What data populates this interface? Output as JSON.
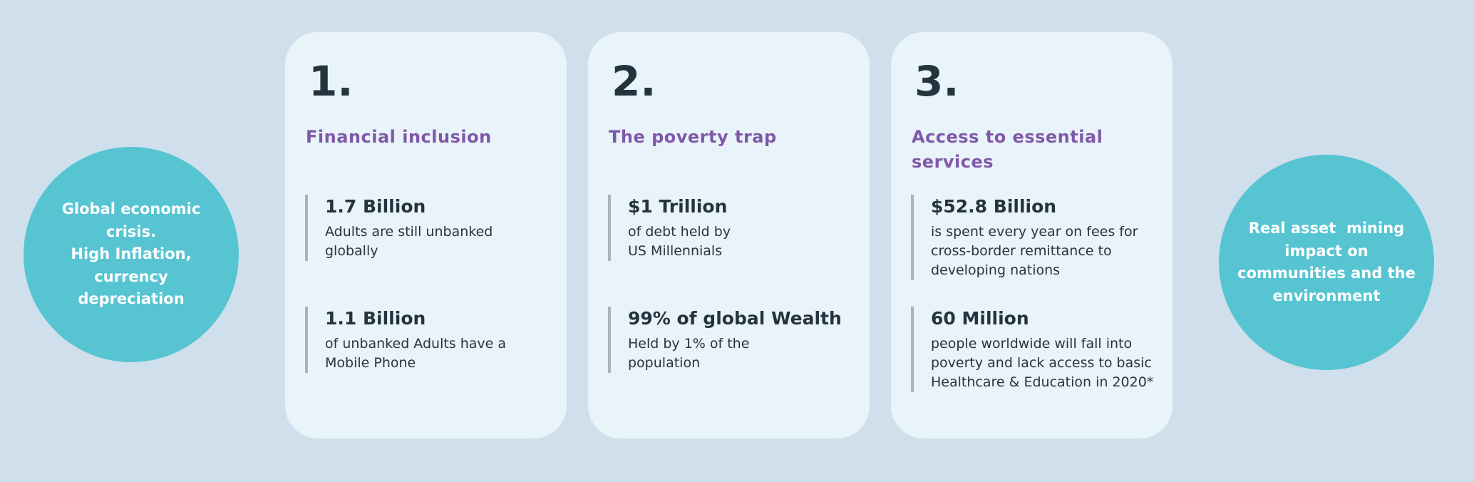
{
  "palette": {
    "background": "#cfe0ec",
    "card_background": "#e9f3fa",
    "bubble_teal": "#57c4d2",
    "heading_purple": "#7f58a7",
    "text_dark": "#25333e",
    "stat_bar_gray": "#a9b3ba"
  },
  "left_bubble": {
    "text": "Global economic\ncrisis.\nHigh Inflation,\ncurrency\ndepreciation"
  },
  "right_bubble": {
    "text": "Real asset  mining\nimpact on\ncommunities and the\nenvironment"
  },
  "cards": [
    {
      "number": "1.",
      "title": "Financial inclusion",
      "stats": [
        {
          "value": "1.7 Billion",
          "description": "Adults are still unbanked\nglobally"
        },
        {
          "value": "1.1 Billion",
          "description": "of unbanked Adults have a\nMobile Phone"
        }
      ]
    },
    {
      "number": "2.",
      "title": "The poverty trap",
      "stats": [
        {
          "value": "$1 Trillion",
          "description": "of debt held by\nUS Millennials"
        },
        {
          "value": "99% of global Wealth",
          "description": "Held by 1% of the\npopulation"
        }
      ]
    },
    {
      "number": "3.",
      "title": "Access to essential\nservices",
      "stats": [
        {
          "value": "$52.8 Billion",
          "description": "is spent every year on fees for\ncross-border remittance to\ndeveloping nations"
        },
        {
          "value": "60 Million",
          "description": "people worldwide will fall into\npoverty and lack access to basic\nHealthcare & Education in 2020*"
        }
      ]
    }
  ]
}
